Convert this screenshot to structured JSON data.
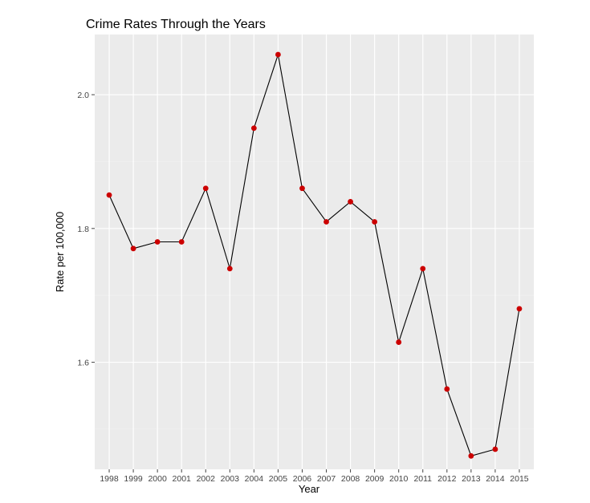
{
  "chart_data": {
    "type": "line",
    "title": "Crime Rates Through the Years",
    "xlabel": "Year",
    "ylabel": "Rate per 100,000",
    "x": [
      1998,
      1999,
      2000,
      2001,
      2002,
      2003,
      2004,
      2005,
      2006,
      2007,
      2008,
      2009,
      2010,
      2011,
      2012,
      2013,
      2014,
      2015
    ],
    "x_tick_labels": [
      "1998",
      "1999",
      "2000",
      "2001",
      "2002",
      "2003",
      "2004",
      "2005",
      "2006",
      "2007",
      "2008",
      "2009",
      "2010",
      "2011",
      "2012",
      "2013",
      "2014",
      "2015"
    ],
    "series": [
      {
        "values": [
          1.85,
          1.77,
          1.78,
          1.78,
          1.86,
          1.74,
          1.95,
          2.06,
          1.86,
          1.81,
          1.84,
          1.81,
          1.63,
          1.74,
          1.56,
          1.46,
          1.47,
          1.68
        ]
      }
    ],
    "y_ticks": [
      1.6,
      1.8,
      2.0
    ],
    "y_tick_labels": [
      "1.6",
      "1.8",
      "2.0"
    ],
    "ylim": [
      1.44,
      2.09
    ],
    "xlim": [
      1997.4,
      2015.6
    ],
    "grid": true,
    "legend": "none",
    "colors": {
      "panel_background": "#ebebeb",
      "grid_major": "#ffffff",
      "grid_minor": "#f2f2f2",
      "line": "#000000",
      "point": "#cc0000"
    }
  }
}
